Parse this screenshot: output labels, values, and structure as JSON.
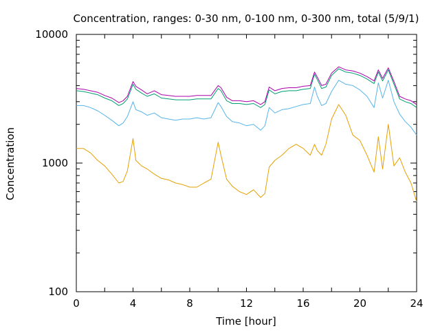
{
  "chart_data": {
    "type": "line",
    "title": "Concentration, ranges: 0-30 nm, 0-100 nm, 0-300 nm, total (5/9/1)",
    "xlabel": "Time [hour]",
    "ylabel": "Concentration",
    "xlim": [
      0,
      24
    ],
    "ylim": [
      100,
      10000
    ],
    "yscale": "log",
    "grid": false,
    "legend": "none",
    "x_ticks": [
      "0",
      "4",
      "8",
      "12",
      "16",
      "20",
      "24"
    ],
    "y_ticks": [
      "100",
      "1000",
      "10000"
    ],
    "x": [
      0,
      0.5,
      1,
      1.5,
      2,
      2.5,
      3,
      3.3,
      3.6,
      4,
      4.2,
      4.6,
      5,
      5.5,
      6,
      6.5,
      7,
      7.5,
      8,
      8.5,
      9,
      9.5,
      10,
      10.2,
      10.6,
      11,
      11.5,
      12,
      12.5,
      13,
      13.3,
      13.6,
      14,
      14.5,
      15,
      15.5,
      16,
      16.5,
      16.8,
      17,
      17.3,
      17.6,
      18,
      18.5,
      19,
      19.5,
      20,
      20.5,
      21,
      21.3,
      21.6,
      22,
      22.4,
      22.8,
      23.2,
      23.6,
      24
    ],
    "series": [
      {
        "color": "#aa00aa",
        "values": [
          3800,
          3750,
          3650,
          3550,
          3350,
          3200,
          2950,
          3050,
          3300,
          4300,
          3950,
          3700,
          3450,
          3650,
          3400,
          3350,
          3300,
          3300,
          3300,
          3350,
          3350,
          3350,
          4000,
          3850,
          3250,
          3050,
          3050,
          3000,
          3050,
          2850,
          3000,
          3900,
          3650,
          3800,
          3850,
          3850,
          3950,
          4000,
          5100,
          4650,
          4000,
          4100,
          5000,
          5600,
          5300,
          5200,
          5000,
          4700,
          4350,
          5300,
          4550,
          5500,
          4300,
          3300,
          3150,
          3050,
          2850
        ]
      },
      {
        "color": "#009e73",
        "values": [
          3650,
          3600,
          3500,
          3400,
          3200,
          3050,
          2800,
          2900,
          3150,
          4100,
          3750,
          3500,
          3300,
          3450,
          3200,
          3150,
          3100,
          3100,
          3100,
          3150,
          3150,
          3150,
          3800,
          3650,
          3050,
          2900,
          2900,
          2850,
          2900,
          2700,
          2850,
          3700,
          3450,
          3600,
          3650,
          3650,
          3750,
          3800,
          4900,
          4450,
          3800,
          3900,
          4800,
          5400,
          5100,
          5000,
          4800,
          4500,
          4150,
          5100,
          4350,
          5300,
          4100,
          3150,
          3000,
          2900,
          2700
        ]
      },
      {
        "color": "#56b4e9",
        "values": [
          2800,
          2800,
          2700,
          2550,
          2350,
          2150,
          1950,
          2050,
          2300,
          3000,
          2600,
          2500,
          2350,
          2450,
          2250,
          2200,
          2150,
          2200,
          2200,
          2250,
          2200,
          2250,
          2950,
          2750,
          2300,
          2100,
          2050,
          1950,
          2000,
          1800,
          1950,
          2700,
          2450,
          2600,
          2650,
          2750,
          2850,
          2900,
          3900,
          3300,
          2800,
          2900,
          3600,
          4400,
          4100,
          4000,
          3700,
          3300,
          2700,
          4200,
          3200,
          4400,
          3000,
          2400,
          2100,
          1900,
          1650
        ]
      },
      {
        "color": "#e69f00",
        "values": [
          1300,
          1300,
          1200,
          1050,
          950,
          820,
          700,
          720,
          870,
          1550,
          1050,
          950,
          900,
          820,
          760,
          740,
          700,
          680,
          650,
          650,
          700,
          750,
          1450,
          1150,
          750,
          660,
          600,
          570,
          620,
          540,
          580,
          930,
          1050,
          1150,
          1300,
          1400,
          1300,
          1150,
          1400,
          1250,
          1150,
          1400,
          2200,
          2850,
          2350,
          1650,
          1500,
          1150,
          850,
          1600,
          900,
          2000,
          950,
          1100,
          850,
          700,
          500
        ]
      }
    ]
  }
}
